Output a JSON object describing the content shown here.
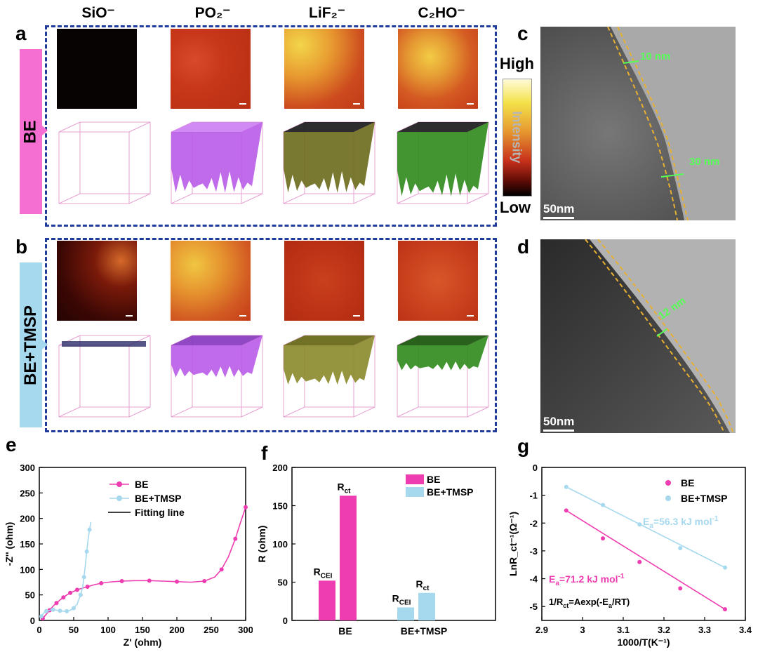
{
  "headers": [
    "SiO⁻",
    "PO₂⁻",
    "LiF₂⁻",
    "C₂HO⁻"
  ],
  "panel_labels": {
    "a": "a",
    "b": "b",
    "c": "c",
    "d": "d",
    "e": "e",
    "f": "f",
    "g": "g"
  },
  "row_labels": {
    "a": "BE",
    "b": "BE+TMSP"
  },
  "colorbar": {
    "high": "High",
    "low": "Low",
    "axis": "Intensity"
  },
  "tem": {
    "c": {
      "scale": "50nm",
      "thick1": "10 nm",
      "thick2": "30 nm"
    },
    "d": {
      "scale": "50nm",
      "thick1": "12 nm"
    }
  },
  "colors": {
    "be": "#ee3db0",
    "tmsp": "#a6d8ee",
    "dash": "#1f3c9c",
    "annot": "#55ff55",
    "edge": "#e8b030"
  },
  "chart_data": [
    {
      "id": "e",
      "type": "scatter",
      "xlabel": "Z' (ohm)",
      "ylabel": "-Z'' (ohm)",
      "xlim": [
        0,
        300
      ],
      "ylim": [
        0,
        300
      ],
      "xticks": [
        0,
        50,
        100,
        150,
        200,
        250,
        300
      ],
      "yticks": [
        0,
        50,
        100,
        150,
        200,
        250,
        300
      ],
      "legend": [
        "BE",
        "BE+TMSP",
        "Fitting line"
      ],
      "series": [
        {
          "name": "BE",
          "x": [
            5,
            10,
            15,
            20,
            25,
            30,
            35,
            40,
            45,
            50,
            55,
            60,
            70,
            80,
            90,
            100,
            120,
            140,
            160,
            180,
            200,
            220,
            240,
            255,
            265,
            275,
            285,
            292,
            300
          ],
          "y": [
            4,
            12,
            20,
            28,
            34,
            40,
            45,
            50,
            54,
            57,
            60,
            62,
            66,
            70,
            73,
            75,
            77,
            78,
            78,
            77,
            76,
            75,
            77,
            85,
            100,
            125,
            160,
            190,
            222
          ]
        },
        {
          "name": "BE+TMSP",
          "x": [
            3,
            6,
            10,
            15,
            20,
            25,
            30,
            35,
            40,
            45,
            50,
            55,
            60,
            63,
            65,
            67,
            69,
            71,
            73,
            75
          ],
          "y": [
            8,
            14,
            18,
            20,
            21,
            20,
            19,
            18,
            18,
            20,
            24,
            32,
            50,
            65,
            85,
            110,
            135,
            160,
            178,
            193
          ]
        }
      ]
    },
    {
      "id": "f",
      "type": "bar",
      "ylabel": "R (ohm)",
      "ylim": [
        0,
        200
      ],
      "yticks": [
        0,
        50,
        100,
        150,
        200
      ],
      "categories": [
        "BE",
        "BE+TMSP"
      ],
      "legend": [
        "BE",
        "BE+TMSP"
      ],
      "series": [
        {
          "name": "R_CEI",
          "labels": [
            "R",
            "CEI"
          ],
          "values": [
            52,
            17
          ]
        },
        {
          "name": "R_ct",
          "labels": [
            "R",
            "ct"
          ],
          "values": [
            163,
            36
          ]
        }
      ]
    },
    {
      "id": "g",
      "type": "scatter",
      "xlabel": "1000/T(K⁻¹)",
      "ylabel": "LnR_ct⁻¹(Ω⁻¹)",
      "xlim": [
        2.9,
        3.4
      ],
      "ylim": [
        -5.5,
        0
      ],
      "xticks": [
        2.9,
        3.0,
        3.1,
        3.2,
        3.3,
        3.4
      ],
      "yticks": [
        0,
        -1,
        -2,
        -3,
        -4,
        -5
      ],
      "legend": [
        "BE",
        "BE+TMSP"
      ],
      "annotations": {
        "tmsp": "=56.3 kJ mol",
        "be": "=71.2 kJ mol",
        "eq": "=Aexp(-E /RT)"
      },
      "series": [
        {
          "name": "BE",
          "x": [
            2.96,
            3.05,
            3.14,
            3.24,
            3.35
          ],
          "y": [
            -1.55,
            -2.55,
            -3.4,
            -4.35,
            -5.1
          ]
        },
        {
          "name": "BE+TMSP",
          "x": [
            2.96,
            3.05,
            3.14,
            3.24,
            3.35
          ],
          "y": [
            -0.7,
            -1.35,
            -2.05,
            -2.9,
            -3.6
          ]
        }
      ]
    }
  ]
}
